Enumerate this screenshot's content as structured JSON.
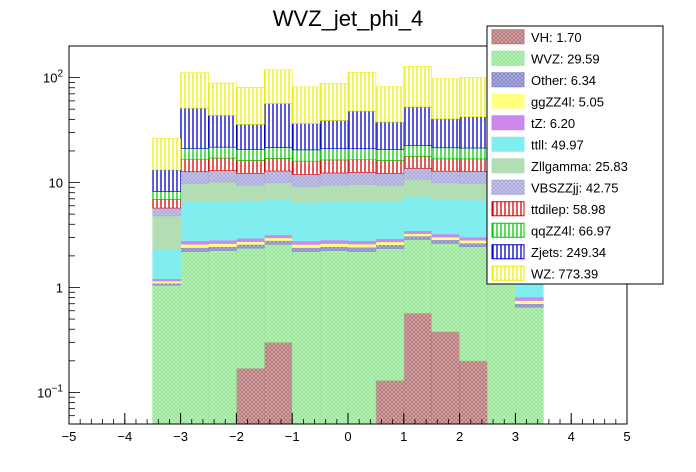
{
  "chart_data": {
    "type": "bar",
    "stacked": true,
    "title": "WVZ_jet_phi_4",
    "xlabel": "",
    "ylabel": "",
    "xlim": [
      -5,
      5
    ],
    "ylim": [
      0.05,
      200
    ],
    "yscale": "log",
    "x_ticks": [
      -5,
      -4,
      -3,
      -2,
      -1,
      0,
      1,
      2,
      3,
      4,
      5
    ],
    "y_ticks": [
      {
        "value": 0.1,
        "base": "10",
        "exp": "−1"
      },
      {
        "value": 1,
        "base": "1",
        "exp": ""
      },
      {
        "value": 10,
        "base": "10",
        "exp": ""
      },
      {
        "value": 100,
        "base": "10",
        "exp": "2"
      }
    ],
    "bin_edges": [
      -3.5,
      -3,
      -2.5,
      -2,
      -1.5,
      -1,
      -0.5,
      0,
      0.5,
      1,
      1.5,
      2,
      2.5,
      3,
      3.5
    ],
    "legend_position": "top-right",
    "series": [
      {
        "name": "VH: 1.70",
        "color": "#b87a7a",
        "pattern": "crosshatch",
        "values": [
          0,
          0,
          0,
          0.17,
          0.3,
          0,
          0,
          0,
          0.13,
          0.57,
          0.38,
          0.2,
          0,
          0
        ]
      },
      {
        "name": "WVZ: 29.59",
        "color": "#99e699",
        "pattern": "crosshatch",
        "values": [
          1.05,
          2.2,
          2.25,
          2.2,
          2.28,
          2.2,
          2.25,
          2.2,
          2.22,
          2.3,
          2.25,
          2.25,
          2.15,
          0.65
        ]
      },
      {
        "name": "Other: 6.34",
        "color": "#8888cc",
        "pattern": "crosshatch",
        "values": [
          0.05,
          0.2,
          0.2,
          0.2,
          0.22,
          0.2,
          0.2,
          0.22,
          0.2,
          0.22,
          0.22,
          0.2,
          0.2,
          0.05
        ]
      },
      {
        "name": "ggZZ4l: 5.05",
        "color": "#ffff80",
        "pattern": "solid",
        "values": [
          0.05,
          0.18,
          0.17,
          0.16,
          0.17,
          0.17,
          0.17,
          0.17,
          0.17,
          0.17,
          0.17,
          0.17,
          0.17,
          0.05
        ]
      },
      {
        "name": "tZ: 6.20",
        "color": "#cc88ee",
        "pattern": "solid",
        "values": [
          0.06,
          0.2,
          0.2,
          0.21,
          0.2,
          0.2,
          0.21,
          0.2,
          0.2,
          0.21,
          0.21,
          0.2,
          0.2,
          0.06
        ]
      },
      {
        "name": "ttll: 49.97",
        "color": "#80eeee",
        "pattern": "solid",
        "values": [
          1.1,
          3.8,
          3.9,
          3.8,
          3.8,
          3.7,
          3.8,
          3.8,
          3.8,
          3.9,
          3.8,
          3.8,
          3.8,
          1.1
        ]
      },
      {
        "name": "Zllgamma: 25.83",
        "color": "#b3ddb3",
        "pattern": "solid",
        "values": [
          2.5,
          3.2,
          3.4,
          2.7,
          3.0,
          2.7,
          2.8,
          3.0,
          2.7,
          3.4,
          2.9,
          3.0,
          3.0,
          0.5
        ]
      },
      {
        "name": "VBSZZjj: 42.75",
        "color": "#aaaadd",
        "pattern": "crosshatch",
        "values": [
          0.9,
          2.9,
          2.9,
          2.8,
          2.9,
          2.8,
          2.9,
          2.9,
          2.8,
          2.9,
          2.9,
          2.9,
          2.8,
          0.9
        ]
      },
      {
        "name": "ttdilep: 58.98",
        "color": "#dd0000",
        "pattern": "vertical",
        "values": [
          1.2,
          4.0,
          4.1,
          4.0,
          4.1,
          4.0,
          4.1,
          4.0,
          4.0,
          4.1,
          4.0,
          4.1,
          4.0,
          1.2
        ]
      },
      {
        "name": "qqZZ4l: 66.97",
        "color": "#00cc00",
        "pattern": "vertical",
        "values": [
          1.3,
          4.5,
          4.6,
          4.5,
          4.6,
          4.5,
          4.6,
          4.5,
          4.5,
          4.7,
          4.6,
          4.5,
          4.6,
          1.3
        ]
      },
      {
        "name": "Zjets: 249.34",
        "color": "#0000cc",
        "pattern": "vertical",
        "values": [
          5,
          30,
          22,
          15,
          35,
          16,
          18,
          27,
          17,
          30,
          19,
          21,
          22,
          6
        ]
      },
      {
        "name": "WZ: 773.39",
        "color": "#eeee00",
        "pattern": "vertical",
        "values": [
          13,
          60,
          45,
          45,
          62,
          45,
          49,
          64,
          44,
          75,
          57,
          58,
          50,
          14
        ]
      }
    ]
  }
}
